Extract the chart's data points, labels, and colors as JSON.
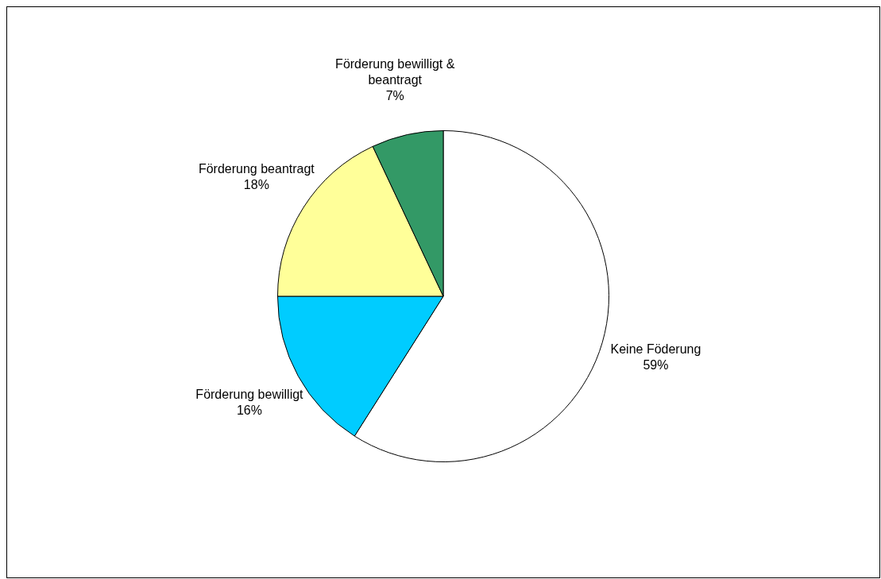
{
  "chart_data": {
    "type": "pie",
    "categories": [
      "Keine Föderung",
      "Förderung bewilligt",
      "Förderung beantragt",
      "Förderung bewilligt & beantragt"
    ],
    "values": [
      59,
      16,
      18,
      7
    ],
    "colors": [
      "#ffffff",
      "#00ccff",
      "#ffff99",
      "#339966"
    ],
    "value_labels": [
      "59%",
      "16%",
      "18%",
      "7%"
    ],
    "legend": false
  }
}
